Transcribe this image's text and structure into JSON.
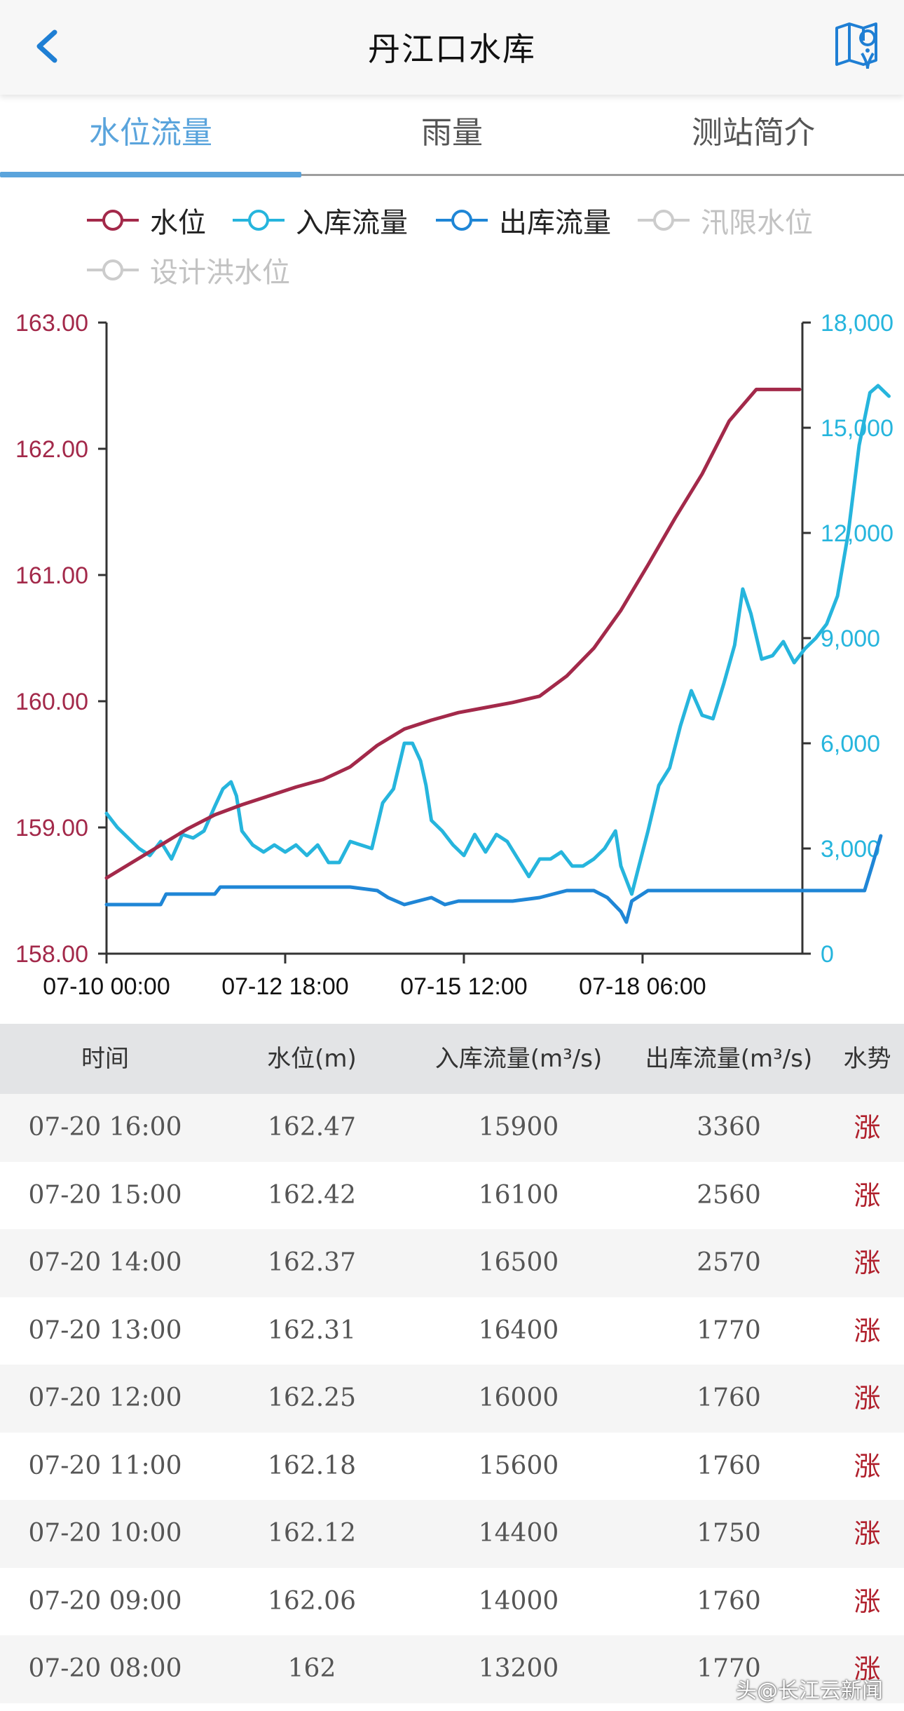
{
  "header": {
    "title": "丹江口水库"
  },
  "tabs": [
    {
      "label": "水位流量",
      "active": true
    },
    {
      "label": "雨量",
      "active": false
    },
    {
      "label": "测站简介",
      "active": false
    }
  ],
  "legend": [
    {
      "label": "水位",
      "color": "#a3294a",
      "enabled": true
    },
    {
      "label": "入库流量",
      "color": "#26b5dd",
      "enabled": true
    },
    {
      "label": "出库流量",
      "color": "#1f86d6",
      "enabled": true
    },
    {
      "label": "汛限水位",
      "color": "#cccccc",
      "enabled": false
    },
    {
      "label": "设计洪水位",
      "color": "#cccccc",
      "enabled": false
    }
  ],
  "chart_data": {
    "type": "line",
    "x_ticks": [
      "07-10 00:00",
      "07-12 18:00",
      "07-15 12:00",
      "07-18 06:00"
    ],
    "left_axis": {
      "ticks": [
        "163.00",
        "162.00",
        "161.00",
        "160.00",
        "159.00",
        "158.00"
      ],
      "range": [
        158,
        163
      ],
      "color": "#a3294a"
    },
    "right_axis": {
      "ticks": [
        "18,000",
        "15,000",
        "12,000",
        "9,000",
        "6,000",
        "3,000",
        "0"
      ],
      "range": [
        0,
        18000
      ],
      "color": "#26b5dd"
    },
    "x_range_hours": [
      0,
      256
    ],
    "series": [
      {
        "name": "水位",
        "axis": "left",
        "color": "#a3294a",
        "points": [
          [
            0,
            158.6
          ],
          [
            10,
            158.73
          ],
          [
            20,
            158.86
          ],
          [
            30,
            158.99
          ],
          [
            40,
            159.1
          ],
          [
            50,
            159.18
          ],
          [
            60,
            159.25
          ],
          [
            70,
            159.32
          ],
          [
            80,
            159.38
          ],
          [
            90,
            159.48
          ],
          [
            100,
            159.65
          ],
          [
            110,
            159.78
          ],
          [
            120,
            159.85
          ],
          [
            130,
            159.91
          ],
          [
            140,
            159.95
          ],
          [
            150,
            159.99
          ],
          [
            160,
            160.04
          ],
          [
            170,
            160.2
          ],
          [
            180,
            160.42
          ],
          [
            190,
            160.72
          ],
          [
            200,
            161.08
          ],
          [
            210,
            161.45
          ],
          [
            220,
            161.8
          ],
          [
            230,
            162.22
          ],
          [
            240,
            162.47
          ],
          [
            256,
            162.47
          ]
        ]
      },
      {
        "name": "入库流量",
        "axis": "right",
        "color": "#26b5dd",
        "points": [
          [
            0,
            4000
          ],
          [
            4,
            3600
          ],
          [
            8,
            3300
          ],
          [
            12,
            3000
          ],
          [
            16,
            2800
          ],
          [
            20,
            3200
          ],
          [
            24,
            2700
          ],
          [
            28,
            3400
          ],
          [
            32,
            3300
          ],
          [
            36,
            3500
          ],
          [
            40,
            4200
          ],
          [
            43,
            4700
          ],
          [
            46,
            4900
          ],
          [
            48,
            4500
          ],
          [
            50,
            3500
          ],
          [
            54,
            3100
          ],
          [
            58,
            2900
          ],
          [
            62,
            3100
          ],
          [
            66,
            2900
          ],
          [
            70,
            3100
          ],
          [
            74,
            2800
          ],
          [
            78,
            3100
          ],
          [
            82,
            2600
          ],
          [
            86,
            2600
          ],
          [
            90,
            3200
          ],
          [
            94,
            3100
          ],
          [
            98,
            3000
          ],
          [
            102,
            4300
          ],
          [
            106,
            4700
          ],
          [
            110,
            6000
          ],
          [
            113,
            6000
          ],
          [
            116,
            5500
          ],
          [
            118,
            4800
          ],
          [
            120,
            3800
          ],
          [
            124,
            3500
          ],
          [
            128,
            3100
          ],
          [
            132,
            2800
          ],
          [
            136,
            3400
          ],
          [
            140,
            2900
          ],
          [
            144,
            3400
          ],
          [
            148,
            3200
          ],
          [
            152,
            2700
          ],
          [
            156,
            2200
          ],
          [
            160,
            2700
          ],
          [
            164,
            2700
          ],
          [
            168,
            2900
          ],
          [
            172,
            2500
          ],
          [
            176,
            2500
          ],
          [
            180,
            2700
          ],
          [
            184,
            3000
          ],
          [
            188,
            3500
          ],
          [
            190,
            2500
          ],
          [
            194,
            1700
          ],
          [
            196,
            2300
          ],
          [
            200,
            3500
          ],
          [
            204,
            4800
          ],
          [
            208,
            5300
          ],
          [
            212,
            6500
          ],
          [
            216,
            7500
          ],
          [
            220,
            6800
          ],
          [
            224,
            6700
          ],
          [
            228,
            7700
          ],
          [
            232,
            8800
          ],
          [
            235,
            10400
          ],
          [
            238,
            9700
          ],
          [
            242,
            8400
          ],
          [
            246,
            8500
          ],
          [
            250,
            8900
          ],
          [
            254,
            8300
          ],
          [
            258,
            8700
          ],
          [
            262,
            9000
          ],
          [
            266,
            9400
          ],
          [
            270,
            10200
          ],
          [
            274,
            12000
          ],
          [
            278,
            14500
          ],
          [
            282,
            16000
          ],
          [
            285,
            16200
          ],
          [
            289,
            15900
          ]
        ]
      },
      {
        "name": "出库流量",
        "axis": "right",
        "color": "#1f86d6",
        "points": [
          [
            0,
            1400
          ],
          [
            20,
            1400
          ],
          [
            22,
            1700
          ],
          [
            40,
            1700
          ],
          [
            42,
            1900
          ],
          [
            60,
            1900
          ],
          [
            72,
            1900
          ],
          [
            80,
            1900
          ],
          [
            90,
            1900
          ],
          [
            100,
            1800
          ],
          [
            104,
            1600
          ],
          [
            110,
            1400
          ],
          [
            120,
            1600
          ],
          [
            125,
            1400
          ],
          [
            130,
            1500
          ],
          [
            140,
            1500
          ],
          [
            150,
            1500
          ],
          [
            160,
            1600
          ],
          [
            170,
            1800
          ],
          [
            180,
            1800
          ],
          [
            185,
            1600
          ],
          [
            190,
            1200
          ],
          [
            192,
            900
          ],
          [
            194,
            1500
          ],
          [
            200,
            1800
          ],
          [
            220,
            1800
          ],
          [
            240,
            1800
          ],
          [
            260,
            1800
          ],
          [
            275,
            1800
          ],
          [
            280,
            1800
          ],
          [
            283,
            2560
          ],
          [
            286,
            3360
          ]
        ]
      }
    ]
  },
  "table": {
    "headers": [
      "时间",
      "水位(m)",
      "入库流量(m³/s)",
      "出库流量(m³/s)",
      "水势"
    ],
    "rows": [
      [
        "07-20 16:00",
        "162.47",
        "15900",
        "3360",
        "涨"
      ],
      [
        "07-20 15:00",
        "162.42",
        "16100",
        "2560",
        "涨"
      ],
      [
        "07-20 14:00",
        "162.37",
        "16500",
        "2570",
        "涨"
      ],
      [
        "07-20 13:00",
        "162.31",
        "16400",
        "1770",
        "涨"
      ],
      [
        "07-20 12:00",
        "162.25",
        "16000",
        "1760",
        "涨"
      ],
      [
        "07-20 11:00",
        "162.18",
        "15600",
        "1760",
        "涨"
      ],
      [
        "07-20 10:00",
        "162.12",
        "14400",
        "1750",
        "涨"
      ],
      [
        "07-20 09:00",
        "162.06",
        "14000",
        "1760",
        "涨"
      ],
      [
        "07-20 08:00",
        "162",
        "13200",
        "1770",
        "涨"
      ]
    ]
  },
  "watermark": "头@长江云新闻"
}
